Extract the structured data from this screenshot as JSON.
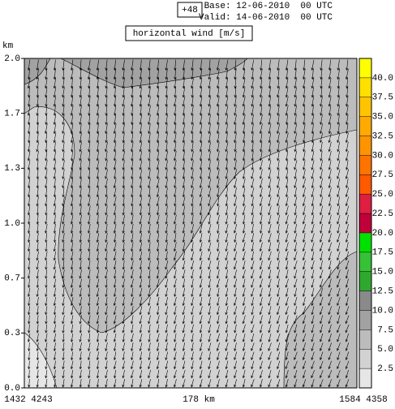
{
  "chart_data": {
    "type": "cross-section",
    "forecast_step": "+48",
    "base": "Base: 12-06-2010  00 UTC",
    "valid": "Valid: 14-06-2010  00 UTC",
    "title": "horizontal wind [m/s]",
    "ylabel": "km",
    "ylim": [
      0,
      2
    ],
    "yticks": [
      {
        "value": 0,
        "label": "0.0"
      },
      {
        "value": 0.3333,
        "label": "0.3"
      },
      {
        "value": 0.6667,
        "label": "0.7"
      },
      {
        "value": 1,
        "label": "1.0"
      },
      {
        "value": 1.3333,
        "label": "1.3"
      },
      {
        "value": 1.6667,
        "label": "1.7"
      },
      {
        "value": 2,
        "label": "2.0"
      }
    ],
    "x_start_label": "1432 4243",
    "x_center_label": "178 km",
    "x_end_label": "1584 4358",
    "colorbar": {
      "range": [
        0,
        42.5
      ],
      "ticks": [
        2.5,
        {
          "value": 5,
          "label": "5.0"
        },
        {
          "value": 7.5,
          "label": "7.5"
        },
        {
          "value": 10,
          "label": "10.0"
        },
        12.5,
        {
          "value": 15,
          "label": "15.0"
        },
        17.5,
        {
          "value": 20,
          "label": "20.0"
        },
        22.5,
        {
          "value": 25,
          "label": "25.0"
        },
        27.5,
        {
          "value": 30,
          "label": "30.0"
        },
        32.5,
        {
          "value": 35,
          "label": "35.0"
        },
        37.5,
        {
          "value": 40,
          "label": "40.0"
        }
      ],
      "colors": [
        "#e6e6e6",
        "#d2d2d2",
        "#bcbcbc",
        "#a2a2a2",
        "#8a8a8a",
        "#2fa82f",
        "#36c236",
        "#00e000",
        "#c0003a",
        "#de1f40",
        "#ff5a00",
        "#ff7400",
        "#ff9400",
        "#ffaa00",
        "#ffc400",
        "#ffe000",
        "#ffff00"
      ]
    }
  }
}
